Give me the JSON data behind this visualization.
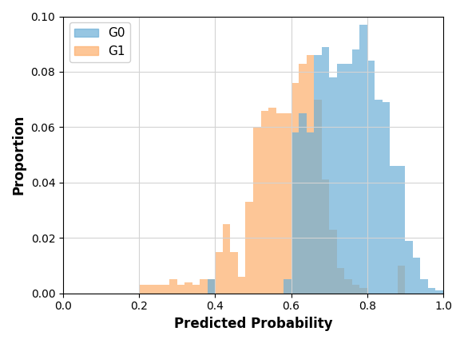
{
  "xlabel": "Predicted Probability",
  "ylabel": "Proportion",
  "xlim": [
    0.0,
    1.0
  ],
  "ylim": [
    0.0,
    0.1
  ],
  "bin_width": 0.02,
  "g0_color": "#6baed6",
  "g1_color": "#fdae6b",
  "g0_alpha": 0.7,
  "g1_alpha": 0.7,
  "g0_label": "G0",
  "g1_label": "G1",
  "g0_heights": [
    0.0,
    0.0,
    0.0,
    0.0,
    0.0,
    0.0,
    0.0,
    0.0,
    0.0,
    0.0,
    0.0,
    0.0,
    0.0,
    0.0,
    0.0,
    0.0,
    0.0,
    0.0,
    0.0,
    0.005,
    0.0,
    0.0,
    0.0,
    0.0,
    0.0,
    0.0,
    0.0,
    0.0,
    0.0,
    0.005,
    0.058,
    0.065,
    0.058,
    0.086,
    0.089,
    0.078,
    0.083,
    0.083,
    0.088,
    0.097,
    0.084,
    0.07,
    0.069,
    0.046,
    0.046,
    0.019,
    0.013,
    0.005,
    0.002,
    0.001
  ],
  "g1_heights": [
    0.0,
    0.0,
    0.0,
    0.0,
    0.0,
    0.0,
    0.0,
    0.0,
    0.0,
    0.0,
    0.003,
    0.003,
    0.003,
    0.003,
    0.005,
    0.003,
    0.004,
    0.003,
    0.005,
    0.005,
    0.015,
    0.025,
    0.015,
    0.006,
    0.033,
    0.06,
    0.066,
    0.067,
    0.065,
    0.065,
    0.076,
    0.083,
    0.086,
    0.07,
    0.041,
    0.023,
    0.009,
    0.005,
    0.003,
    0.002,
    0.0,
    0.0,
    0.0,
    0.0,
    0.01,
    0.0,
    0.0,
    0.0,
    0.0,
    0.0
  ],
  "xticks": [
    0.0,
    0.2,
    0.4,
    0.6,
    0.8,
    1.0
  ],
  "yticks": [
    0.0,
    0.02,
    0.04,
    0.06,
    0.08,
    0.1
  ],
  "xlabel_fontsize": 12,
  "ylabel_fontsize": 12,
  "legend_fontsize": 11
}
